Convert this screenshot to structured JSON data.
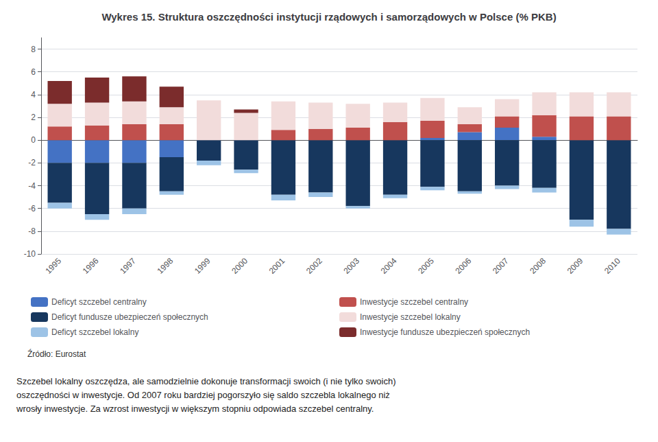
{
  "chart_data": {
    "type": "bar",
    "title": "Wykres 15. Struktura oszczędności instytucji rządowych i samorządowych w Polsce (% PKB)",
    "categories": [
      1995,
      1996,
      1997,
      1998,
      1999,
      2000,
      2001,
      2002,
      2003,
      2004,
      2005,
      2006,
      2007,
      2008,
      2009,
      2010
    ],
    "stacked": true,
    "series": [
      {
        "name": "Deficyt szczebel centralny",
        "color": "#4472C4",
        "values": [
          -2.0,
          -2.0,
          -2.0,
          -1.5,
          0.0,
          0.0,
          0.0,
          0.0,
          0.0,
          0.0,
          0.2,
          0.7,
          1.1,
          0.3,
          0.0,
          0.0
        ]
      },
      {
        "name": "Deficyt fundusze ubezpieczeń społecznych",
        "color": "#17375E",
        "values": [
          -3.5,
          -4.5,
          -4.0,
          -3.0,
          -1.8,
          -2.6,
          -4.8,
          -4.6,
          -5.8,
          -4.8,
          -4.1,
          -4.5,
          -4.0,
          -4.2,
          -7.0,
          -7.8
        ]
      },
      {
        "name": "Deficyt szczebel lokalny",
        "color": "#9DC3E6",
        "values": [
          -0.5,
          -0.5,
          -0.5,
          -0.3,
          -0.4,
          -0.3,
          -0.5,
          -0.4,
          -0.2,
          -0.3,
          -0.3,
          -0.2,
          -0.3,
          -0.4,
          -0.6,
          -0.5
        ]
      },
      {
        "name": "Inwestycje szczebel centralny",
        "color": "#C0504D",
        "values": [
          1.2,
          1.3,
          1.4,
          1.4,
          0.0,
          0.0,
          0.9,
          1.0,
          1.1,
          1.6,
          1.5,
          0.7,
          1.0,
          1.9,
          2.1,
          2.1
        ]
      },
      {
        "name": "Inwestycje szczebel lokalny",
        "color": "#F2DCDB",
        "values": [
          2.0,
          2.0,
          2.0,
          1.5,
          3.5,
          2.4,
          2.5,
          2.3,
          2.1,
          1.7,
          2.0,
          1.5,
          1.5,
          2.0,
          2.1,
          2.1
        ]
      },
      {
        "name": "Inwestycje fundusze ubezpieczeń społecznych",
        "color": "#7B2C2C",
        "values": [
          2.0,
          2.2,
          2.2,
          1.8,
          0.0,
          0.3,
          0.0,
          0.0,
          0.0,
          0.0,
          0.0,
          0.0,
          0.0,
          0.0,
          0.0,
          0.0
        ]
      }
    ],
    "ylim": [
      -10,
      9
    ],
    "yticks": [
      -10,
      -8,
      -6,
      -4,
      -2,
      0,
      2,
      4,
      6,
      8
    ],
    "grid": true,
    "legend": "bottom",
    "annotations": [
      "Źródło: Eurostat",
      "Szczebel lokalny oszczędza, ale samodzielnie dokonuje transformacji swoich (i nie tylko swoich)\noszczędności w inwestycje. Od 2007 roku bardziej pogorszyło się saldo szczebla lokalnego niż\nwrosły inwestycje. Za wzrost inwestycji w większym stopniu odpowiada szczebel centralny."
    ]
  }
}
